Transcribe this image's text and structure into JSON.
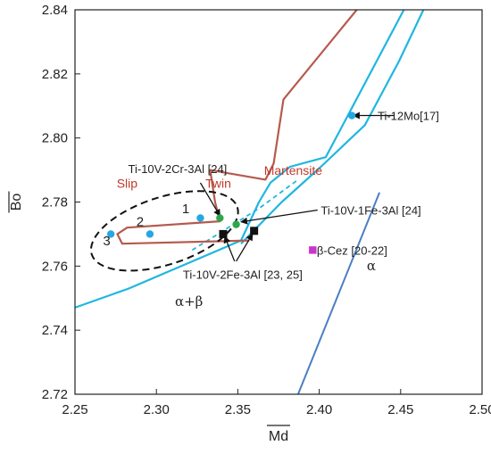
{
  "chart_data": {
    "type": "scatter",
    "xlabel": "Md",
    "ylabel": "Bo",
    "xlim": [
      2.25,
      2.5
    ],
    "ylim": [
      2.72,
      2.84
    ],
    "x_ticks": [
      "2.25",
      "2.30",
      "2.35",
      "2.40",
      "2.45",
      "2.50"
    ],
    "y_ticks": [
      "2.72",
      "2.74",
      "2.76",
      "2.78",
      "2.80",
      "2.82",
      "2.84"
    ],
    "colors": {
      "red_line": "#b55a4d",
      "blue_line": "#1fb6e0",
      "steel_line": "#4a7fc1",
      "cyan_point": "#23a8e0",
      "green_point": "#2aa84a",
      "black_point": "#111111",
      "magenta_point": "#cc33cc"
    },
    "boundary_curves": {
      "red_slip_twin": [
        [
          2.423,
          2.84
        ],
        [
          2.378,
          2.812
        ],
        [
          2.372,
          2.792
        ],
        [
          2.367,
          2.787
        ],
        [
          2.344,
          2.789
        ],
        [
          2.333,
          2.79
        ],
        [
          2.336,
          2.78
        ],
        [
          2.339,
          2.774
        ],
        [
          2.282,
          2.772
        ],
        [
          2.276,
          2.77
        ],
        [
          2.279,
          2.767
        ],
        [
          2.357,
          2.768
        ]
      ],
      "blue_outer": [
        [
          2.222,
          2.742
        ],
        [
          2.283,
          2.753
        ],
        [
          2.352,
          2.768
        ],
        [
          2.363,
          2.78
        ],
        [
          2.37,
          2.786
        ],
        [
          2.382,
          2.791
        ],
        [
          2.404,
          2.794
        ],
        [
          2.452,
          2.84
        ]
      ],
      "blue_inner": [
        [
          2.352,
          2.767
        ],
        [
          2.377,
          2.78
        ],
        [
          2.401,
          2.791
        ],
        [
          2.428,
          2.804
        ],
        [
          2.449,
          2.824
        ],
        [
          2.464,
          2.84
        ]
      ],
      "blue_dashed": [
        [
          2.322,
          2.765
        ],
        [
          2.363,
          2.778
        ],
        [
          2.387,
          2.787
        ]
      ],
      "alpha_boundary": [
        [
          2.387,
          2.72
        ],
        [
          2.437,
          2.783
        ]
      ],
      "ellipse": {
        "cx": 2.305,
        "cy": 2.771,
        "rx": 0.047,
        "ry": 0.0105,
        "rotation_deg": -18
      }
    },
    "points": [
      {
        "x": 2.272,
        "y": 2.77,
        "marker": "cyan"
      },
      {
        "x": 2.296,
        "y": 2.77,
        "marker": "cyan"
      },
      {
        "x": 2.327,
        "y": 2.775,
        "marker": "cyan"
      },
      {
        "x": 2.42,
        "y": 2.807,
        "marker": "cyan"
      },
      {
        "x": 2.339,
        "y": 2.775,
        "marker": "green"
      },
      {
        "x": 2.349,
        "y": 2.773,
        "marker": "green"
      },
      {
        "x": 2.341,
        "y": 2.77,
        "marker": "black"
      },
      {
        "x": 2.36,
        "y": 2.771,
        "marker": "black"
      },
      {
        "x": 2.396,
        "y": 2.765,
        "marker": "magenta"
      }
    ],
    "annotations": {
      "ti12mo": "Ti-12Mo[17]",
      "ti10v2cr": "Ti-10V-2Cr-3Al [24]",
      "ti10v1fe": "Ti-10V-1Fe-3Al [24]",
      "ti10v2fe": "Ti-10V-2Fe-3Al [23, 25]",
      "beta_cez": "β-Cez [20-22]"
    },
    "region_labels": {
      "slip": "Slip",
      "twin": "Twin",
      "martensite": "Martensite",
      "alpha": "α",
      "alpha_beta": "α+β"
    },
    "number_labels": [
      "1",
      "2",
      "3"
    ]
  }
}
